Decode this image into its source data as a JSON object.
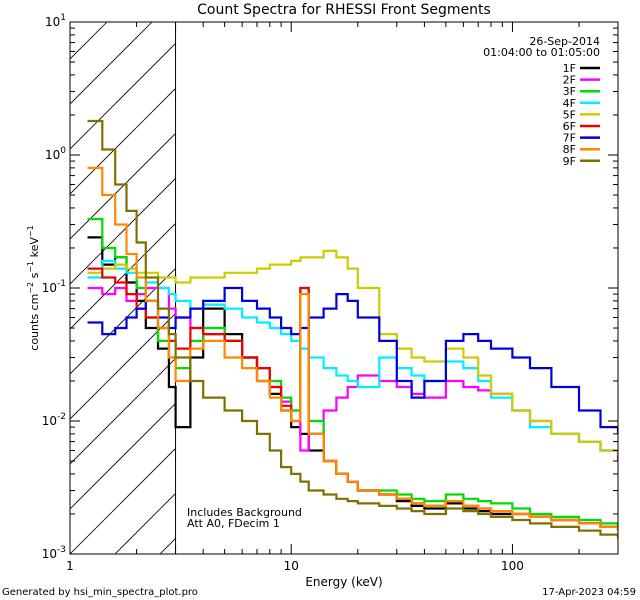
{
  "chart_data": {
    "type": "line",
    "title": "Count Spectra for RHESSI Front Segments",
    "xlabel": "Energy (keV)",
    "ylabel": "counts cm⁻² s⁻¹ keV⁻¹",
    "xscale": "log",
    "yscale": "log",
    "xlim": [
      1,
      300
    ],
    "ylim": [
      0.001,
      10
    ],
    "x_ticks": [
      {
        "value": 1,
        "label": "1"
      },
      {
        "value": 10,
        "label": "10"
      },
      {
        "value": 100,
        "label": "100"
      }
    ],
    "y_ticks": [
      {
        "value": 0.001,
        "base": "10",
        "exp": "-3"
      },
      {
        "value": 0.01,
        "base": "10",
        "exp": "-2"
      },
      {
        "value": 0.1,
        "base": "10",
        "exp": "-1"
      },
      {
        "value": 1,
        "base": "10",
        "exp": "0"
      },
      {
        "value": 10,
        "base": "10",
        "exp": "1"
      }
    ],
    "date": "26-Sep-2014",
    "time_range": "01:04:00 to 01:05:00",
    "hatched_region_keV": [
      1,
      3
    ],
    "annotations": [
      "Includes Background",
      "Att A0, FDecim 1"
    ],
    "series": [
      {
        "name": "1F",
        "color": "#000000",
        "x": [
          1.2,
          1.4,
          1.6,
          1.8,
          2.0,
          2.2,
          2.5,
          2.8,
          3.0,
          3.5,
          4,
          5,
          6,
          7,
          8,
          9,
          10,
          11,
          12,
          14,
          16,
          18,
          20,
          25,
          30,
          35,
          40,
          50,
          60,
          70,
          80,
          100,
          120,
          150,
          200,
          250,
          300
        ],
        "values": [
          0.24,
          0.15,
          0.17,
          0.11,
          0.08,
          0.05,
          0.035,
          0.018,
          0.009,
          0.03,
          0.07,
          0.045,
          0.03,
          0.02,
          0.016,
          0.012,
          0.009,
          0.008,
          0.006,
          0.005,
          0.004,
          0.0035,
          0.003,
          0.0028,
          0.0025,
          0.0023,
          0.0022,
          0.0024,
          0.0022,
          0.0021,
          0.002,
          0.002,
          0.0019,
          0.0018,
          0.0017,
          0.0016,
          0.0015
        ]
      },
      {
        "name": "2F",
        "color": "#ff00ff",
        "x": [
          1.2,
          1.4,
          1.6,
          1.8,
          2.0,
          2.2,
          2.5,
          2.8,
          3.0,
          3.5,
          4,
          5,
          6,
          7,
          8,
          9,
          10,
          11,
          12,
          14,
          16,
          18,
          20,
          25,
          30,
          35,
          40,
          50,
          60,
          70,
          80,
          100,
          120,
          150,
          200,
          250,
          300
        ],
        "values": [
          0.1,
          0.09,
          0.1,
          0.08,
          0.09,
          0.1,
          0.1,
          0.07,
          0.06,
          0.05,
          0.045,
          0.04,
          0.03,
          0.025,
          0.018,
          0.014,
          0.012,
          0.006,
          0.008,
          0.012,
          0.015,
          0.018,
          0.022,
          0.02,
          0.018,
          0.016,
          0.015,
          0.02,
          0.018,
          0.017,
          0.016,
          0.012,
          0.01,
          0.008,
          0.007,
          0.006,
          0.005
        ]
      },
      {
        "name": "3F",
        "color": "#00dd00",
        "x": [
          1.2,
          1.4,
          1.6,
          1.8,
          2.0,
          2.2,
          2.5,
          2.8,
          3.0,
          3.5,
          4,
          5,
          6,
          7,
          8,
          9,
          10,
          11,
          12,
          14,
          16,
          18,
          20,
          25,
          30,
          35,
          40,
          50,
          60,
          70,
          80,
          100,
          120,
          150,
          200,
          250,
          300
        ],
        "values": [
          0.33,
          0.2,
          0.17,
          0.14,
          0.1,
          0.06,
          0.04,
          0.03,
          0.025,
          0.04,
          0.05,
          0.04,
          0.03,
          0.025,
          0.02,
          0.015,
          0.012,
          0.1,
          0.01,
          0.005,
          0.004,
          0.0035,
          0.003,
          0.003,
          0.0028,
          0.0026,
          0.0025,
          0.0028,
          0.0026,
          0.0025,
          0.0024,
          0.0022,
          0.002,
          0.0019,
          0.0018,
          0.0017,
          0.0016
        ]
      },
      {
        "name": "4F",
        "color": "#00eeff",
        "x": [
          1.2,
          1.4,
          1.6,
          1.8,
          2.0,
          2.2,
          2.5,
          2.8,
          3.0,
          3.5,
          4,
          5,
          6,
          7,
          8,
          9,
          10,
          11,
          12,
          14,
          16,
          18,
          20,
          25,
          30,
          35,
          40,
          50,
          60,
          70,
          80,
          100,
          120,
          150,
          200,
          250,
          300
        ],
        "values": [
          0.12,
          0.16,
          0.14,
          0.13,
          0.12,
          0.11,
          0.1,
          0.09,
          0.08,
          0.07,
          0.075,
          0.07,
          0.06,
          0.055,
          0.05,
          0.045,
          0.04,
          0.035,
          0.03,
          0.025,
          0.022,
          0.02,
          0.018,
          0.03,
          0.025,
          0.022,
          0.02,
          0.028,
          0.025,
          0.02,
          0.015,
          0.012,
          0.009,
          0.008,
          0.007,
          0.006,
          0.0055
        ]
      },
      {
        "name": "5F",
        "color": "#cccc00",
        "x": [
          1.2,
          1.4,
          1.6,
          1.8,
          2.0,
          2.2,
          2.5,
          2.8,
          3.0,
          3.5,
          4,
          5,
          6,
          7,
          8,
          9,
          10,
          11,
          12,
          14,
          16,
          18,
          20,
          25,
          30,
          35,
          40,
          50,
          60,
          70,
          80,
          100,
          120,
          150,
          200,
          250,
          300
        ],
        "values": [
          0.13,
          0.14,
          0.15,
          0.14,
          0.13,
          0.13,
          0.12,
          0.12,
          0.11,
          0.12,
          0.12,
          0.13,
          0.13,
          0.14,
          0.15,
          0.15,
          0.16,
          0.17,
          0.17,
          0.19,
          0.17,
          0.14,
          0.1,
          0.045,
          0.035,
          0.03,
          0.028,
          0.035,
          0.03,
          0.022,
          0.016,
          0.012,
          0.01,
          0.008,
          0.007,
          0.006,
          0.0055
        ]
      },
      {
        "name": "6F",
        "color": "#ee0000",
        "x": [
          1.2,
          1.4,
          1.6,
          1.8,
          2.0,
          2.2,
          2.5,
          2.8,
          3.0,
          3.5,
          4,
          5,
          6,
          7,
          8,
          9,
          10,
          11,
          12,
          14,
          16,
          18,
          20,
          25,
          30,
          35,
          40,
          50,
          60,
          70,
          80,
          100,
          120,
          150,
          200,
          250,
          300
        ],
        "values": [
          0.14,
          0.12,
          0.11,
          0.09,
          0.07,
          0.06,
          0.05,
          0.04,
          0.035,
          0.05,
          0.045,
          0.04,
          0.03,
          0.025,
          0.018,
          0.013,
          0.01,
          0.1,
          0.008,
          0.005,
          0.004,
          0.0035,
          0.003,
          0.0028,
          0.0026,
          0.0024,
          0.0023,
          0.0025,
          0.0023,
          0.0022,
          0.0021,
          0.002,
          0.0019,
          0.0018,
          0.0017,
          0.0016,
          0.0015
        ]
      },
      {
        "name": "7F",
        "color": "#0000dd",
        "x": [
          1.2,
          1.4,
          1.6,
          1.8,
          2.0,
          2.2,
          2.5,
          2.8,
          3.0,
          3.5,
          4,
          5,
          6,
          7,
          8,
          9,
          10,
          11,
          12,
          14,
          16,
          18,
          20,
          25,
          30,
          35,
          40,
          50,
          60,
          70,
          80,
          100,
          120,
          150,
          200,
          250,
          300
        ],
        "values": [
          0.055,
          0.045,
          0.05,
          0.06,
          0.07,
          0.08,
          0.06,
          0.05,
          0.06,
          0.07,
          0.08,
          0.1,
          0.08,
          0.07,
          0.06,
          0.05,
          0.045,
          0.05,
          0.06,
          0.07,
          0.09,
          0.08,
          0.06,
          0.04,
          0.02,
          0.015,
          0.02,
          0.04,
          0.045,
          0.04,
          0.035,
          0.03,
          0.025,
          0.018,
          0.012,
          0.009,
          0.008
        ]
      },
      {
        "name": "8F",
        "color": "#ff8800",
        "x": [
          1.2,
          1.4,
          1.6,
          1.8,
          2.0,
          2.2,
          2.5,
          2.8,
          3.0,
          3.5,
          4,
          5,
          6,
          7,
          8,
          9,
          10,
          11,
          12,
          14,
          16,
          18,
          20,
          25,
          30,
          35,
          40,
          50,
          60,
          70,
          80,
          100,
          120,
          150,
          200,
          250,
          300
        ],
        "values": [
          0.8,
          0.5,
          0.3,
          0.18,
          0.12,
          0.08,
          0.05,
          0.03,
          0.02,
          0.035,
          0.04,
          0.03,
          0.025,
          0.02,
          0.015,
          0.012,
          0.01,
          0.09,
          0.008,
          0.005,
          0.004,
          0.0035,
          0.003,
          0.0028,
          0.0026,
          0.0024,
          0.0023,
          0.0025,
          0.0023,
          0.0022,
          0.0021,
          0.002,
          0.0019,
          0.0018,
          0.0017,
          0.0016,
          0.0015
        ]
      },
      {
        "name": "9F",
        "color": "#807000",
        "x": [
          1.2,
          1.4,
          1.6,
          1.8,
          2.0,
          2.2,
          2.5,
          2.8,
          3.0,
          3.5,
          4,
          5,
          6,
          7,
          8,
          9,
          10,
          11,
          12,
          14,
          16,
          18,
          20,
          25,
          30,
          35,
          40,
          50,
          60,
          70,
          80,
          100,
          120,
          150,
          200,
          250,
          300
        ],
        "values": [
          1.8,
          1.1,
          0.6,
          0.38,
          0.22,
          0.12,
          0.07,
          0.045,
          0.03,
          0.02,
          0.015,
          0.012,
          0.01,
          0.008,
          0.006,
          0.0045,
          0.004,
          0.0035,
          0.003,
          0.0028,
          0.0026,
          0.0025,
          0.0024,
          0.0023,
          0.0022,
          0.0021,
          0.002,
          0.0022,
          0.0021,
          0.002,
          0.0019,
          0.0018,
          0.0017,
          0.0016,
          0.0015,
          0.0014,
          0.0013
        ]
      }
    ]
  },
  "footer": {
    "generated_by": "Generated by hsi_min_spectra_plot.pro",
    "timestamp": "17-Apr-2023 04:59"
  }
}
